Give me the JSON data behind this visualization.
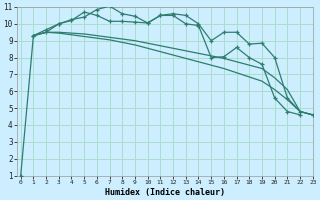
{
  "xlabel": "Humidex (Indice chaleur)",
  "background_color": "#cceeff",
  "grid_color": "#aaddcc",
  "line_color": "#2e7d6e",
  "xlim": [
    -0.3,
    23
  ],
  "ylim": [
    1,
    11
  ],
  "yticks": [
    1,
    2,
    3,
    4,
    5,
    6,
    7,
    8,
    9,
    10,
    11
  ],
  "xticks": [
    0,
    1,
    2,
    3,
    4,
    5,
    6,
    7,
    8,
    9,
    10,
    11,
    12,
    13,
    14,
    15,
    16,
    17,
    18,
    19,
    20,
    21,
    22,
    23
  ],
  "series": [
    {
      "x": [
        0,
        1,
        2,
        3,
        4,
        5,
        6,
        7,
        8,
        9,
        10,
        11,
        12,
        13,
        14,
        15,
        16,
        17,
        18,
        19,
        20,
        21,
        22
      ],
      "y": [
        1.0,
        9.3,
        9.5,
        10.0,
        10.2,
        10.7,
        10.5,
        10.15,
        10.15,
        10.1,
        10.05,
        10.5,
        10.5,
        10.0,
        9.9,
        8.0,
        8.05,
        8.6,
        8.0,
        7.6,
        5.6,
        4.8,
        4.6
      ],
      "marker": true
    },
    {
      "x": [
        1,
        2,
        3,
        4,
        5,
        6,
        7,
        8,
        9,
        10,
        11,
        12,
        13,
        14,
        15,
        16,
        17,
        18,
        19,
        20,
        21,
        22,
        23
      ],
      "y": [
        9.3,
        9.65,
        10.0,
        10.25,
        10.4,
        10.85,
        11.05,
        10.6,
        10.45,
        10.05,
        10.5,
        10.6,
        10.5,
        10.0,
        9.0,
        9.5,
        9.5,
        8.8,
        8.85,
        8.0,
        5.6,
        4.8,
        4.6
      ],
      "marker": true
    },
    {
      "x": [
        1,
        2,
        3,
        4,
        5,
        6,
        7,
        8,
        9,
        10,
        11,
        12,
        13,
        14,
        15,
        16,
        17,
        18,
        19,
        20,
        21,
        22,
        23
      ],
      "y": [
        9.3,
        9.5,
        9.5,
        9.45,
        9.4,
        9.3,
        9.2,
        9.1,
        9.0,
        8.85,
        8.7,
        8.55,
        8.4,
        8.25,
        8.1,
        7.95,
        7.75,
        7.55,
        7.35,
        6.8,
        6.1,
        4.8,
        4.6
      ],
      "marker": false
    },
    {
      "x": [
        1,
        2,
        3,
        4,
        5,
        6,
        7,
        8,
        9,
        10,
        11,
        12,
        13,
        14,
        15,
        16,
        17,
        18,
        19,
        20,
        21,
        22,
        23
      ],
      "y": [
        9.3,
        9.5,
        9.45,
        9.35,
        9.25,
        9.15,
        9.05,
        8.9,
        8.75,
        8.55,
        8.35,
        8.15,
        7.95,
        7.75,
        7.55,
        7.35,
        7.1,
        6.85,
        6.6,
        6.1,
        5.5,
        4.8,
        4.6
      ],
      "marker": false
    }
  ]
}
